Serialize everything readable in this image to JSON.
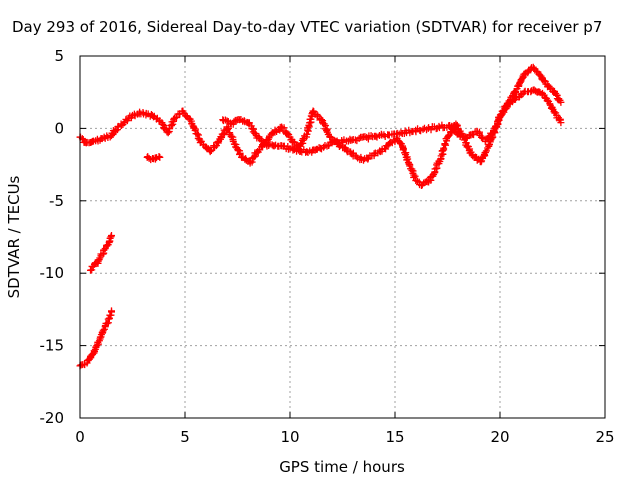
{
  "chart_data": {
    "type": "scatter",
    "title": "Day 293 of 2016, Sidereal Day-to-day VTEC variation (SDTVAR) for receiver p7",
    "xlabel": "GPS time / hours",
    "ylabel": "SDTVAR / TECUs",
    "xlim": [
      0,
      25
    ],
    "ylim": [
      -20,
      5
    ],
    "xticks": [
      "0",
      "5",
      "10",
      "15",
      "20",
      "25"
    ],
    "yticks": [
      "5",
      "0",
      "-5",
      "-10",
      "-15",
      "-20"
    ],
    "grid": true,
    "marker": "+",
    "color": "#ff0000",
    "series": [
      {
        "name": "main",
        "points": [
          [
            0.0,
            -0.6
          ],
          [
            0.3,
            -1.0
          ],
          [
            0.6,
            -0.9
          ],
          [
            1.0,
            -0.7
          ],
          [
            1.5,
            -0.5
          ],
          [
            1.8,
            0.1
          ],
          [
            2.1,
            0.4
          ],
          [
            2.5,
            0.9
          ],
          [
            3.0,
            1.1
          ],
          [
            3.5,
            0.8
          ],
          [
            3.9,
            0.4
          ],
          [
            4.2,
            -0.3
          ],
          [
            4.5,
            0.7
          ],
          [
            4.9,
            1.2
          ],
          [
            5.3,
            0.5
          ],
          [
            5.7,
            -0.8
          ],
          [
            6.2,
            -1.6
          ],
          [
            6.6,
            -0.9
          ],
          [
            7.0,
            0.1
          ],
          [
            7.3,
            -0.9
          ],
          [
            7.7,
            -2.0
          ],
          [
            8.1,
            -2.4
          ],
          [
            8.4,
            -1.7
          ],
          [
            8.8,
            -1.0
          ],
          [
            9.2,
            -0.3
          ],
          [
            9.6,
            0.1
          ],
          [
            10.0,
            -0.6
          ],
          [
            10.4,
            -1.4
          ],
          [
            10.8,
            -0.4
          ],
          [
            11.1,
            1.2
          ],
          [
            11.5,
            0.6
          ],
          [
            11.9,
            -0.6
          ],
          [
            12.3,
            -1.1
          ],
          [
            12.7,
            -1.5
          ],
          [
            13.1,
            -1.9
          ],
          [
            13.5,
            -2.2
          ],
          [
            13.9,
            -1.9
          ],
          [
            14.3,
            -1.6
          ],
          [
            14.7,
            -1.1
          ],
          [
            15.1,
            -0.7
          ],
          [
            15.4,
            -1.4
          ],
          [
            15.7,
            -2.5
          ],
          [
            16.0,
            -3.6
          ],
          [
            16.3,
            -3.9
          ],
          [
            16.6,
            -3.7
          ],
          [
            16.9,
            -3.0
          ],
          [
            17.2,
            -1.9
          ],
          [
            17.5,
            -0.6
          ],
          [
            17.9,
            0.3
          ],
          [
            18.3,
            -0.8
          ],
          [
            18.7,
            -1.9
          ],
          [
            19.1,
            -2.3
          ],
          [
            19.5,
            -1.1
          ],
          [
            19.9,
            0.5
          ],
          [
            20.3,
            1.6
          ],
          [
            20.7,
            2.0
          ],
          [
            21.1,
            2.4
          ],
          [
            21.5,
            2.6
          ],
          [
            21.8,
            2.5
          ],
          [
            22.1,
            2.3
          ],
          [
            22.4,
            1.6
          ],
          [
            22.7,
            0.9
          ],
          [
            22.9,
            0.4
          ]
        ]
      },
      {
        "name": "upper-band",
        "points": [
          [
            6.8,
            0.6
          ],
          [
            7.2,
            0.3
          ],
          [
            7.6,
            0.6
          ],
          [
            8.0,
            0.4
          ],
          [
            8.4,
            -0.5
          ],
          [
            8.8,
            -1.1
          ],
          [
            9.2,
            -1.2
          ],
          [
            9.6,
            -1.2
          ],
          [
            10.0,
            -1.4
          ],
          [
            10.4,
            -1.5
          ],
          [
            10.8,
            -1.6
          ],
          [
            11.2,
            -1.5
          ],
          [
            11.6,
            -1.3
          ],
          [
            12.0,
            -1.0
          ],
          [
            17.6,
            0.2
          ],
          [
            18.0,
            -0.4
          ],
          [
            18.4,
            -0.7
          ],
          [
            18.9,
            -0.2
          ],
          [
            19.3,
            -0.9
          ],
          [
            19.7,
            -0.2
          ],
          [
            20.1,
            1.0
          ],
          [
            20.5,
            2.0
          ],
          [
            20.9,
            3.0
          ],
          [
            21.2,
            3.8
          ],
          [
            21.5,
            4.2
          ],
          [
            21.8,
            3.9
          ],
          [
            22.1,
            3.3
          ],
          [
            22.4,
            2.8
          ],
          [
            22.7,
            2.3
          ],
          [
            22.9,
            1.8
          ]
        ]
      },
      {
        "name": "short-segment",
        "points": [
          [
            3.2,
            -2.0
          ],
          [
            3.5,
            -2.1
          ],
          [
            3.8,
            -2.0
          ]
        ]
      },
      {
        "name": "low-arc-1",
        "points": [
          [
            0.5,
            -9.8
          ],
          [
            0.8,
            -9.3
          ],
          [
            1.0,
            -8.8
          ],
          [
            1.2,
            -8.3
          ],
          [
            1.4,
            -7.8
          ],
          [
            1.5,
            -7.4
          ]
        ]
      },
      {
        "name": "low-arc-2",
        "points": [
          [
            0.0,
            -16.4
          ],
          [
            0.2,
            -16.3
          ],
          [
            0.4,
            -16.0
          ],
          [
            0.6,
            -15.6
          ],
          [
            0.8,
            -15.0
          ],
          [
            1.0,
            -14.4
          ],
          [
            1.2,
            -13.7
          ],
          [
            1.4,
            -13.1
          ],
          [
            1.5,
            -12.6
          ]
        ]
      }
    ]
  }
}
